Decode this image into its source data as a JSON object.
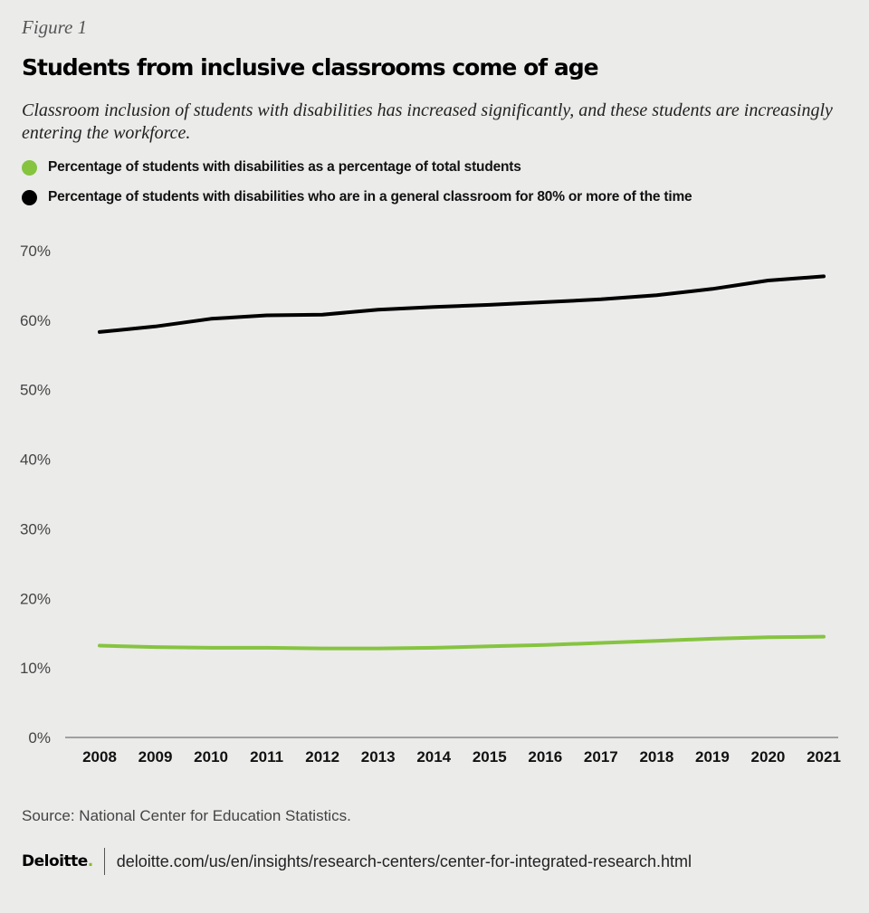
{
  "figure_label": "Figure 1",
  "title": "Students from inclusive classrooms come of age",
  "subtitle": "Classroom inclusion of students with disabilities has increased significantly, and these students are increasingly entering the workforce.",
  "colors": {
    "background": "#ebebea",
    "green": "#86c440",
    "black": "#000000"
  },
  "chart_data": {
    "type": "line",
    "title": "Students from inclusive classrooms come of age",
    "xlabel": "",
    "ylabel": "",
    "ylim": [
      0,
      70
    ],
    "yticks": [
      "0%",
      "10%",
      "20%",
      "30%",
      "40%",
      "50%",
      "60%",
      "70%"
    ],
    "categories": [
      "2008",
      "2009",
      "2010",
      "2011",
      "2012",
      "2013",
      "2014",
      "2015",
      "2016",
      "2017",
      "2018",
      "2019",
      "2020",
      "2021"
    ],
    "grid": false,
    "legend_position": "top-left",
    "series": [
      {
        "name": "Percentage of students with disabilities as a percentage of total students",
        "color": "#86c440",
        "values": [
          13.2,
          13.0,
          12.9,
          12.9,
          12.8,
          12.8,
          12.9,
          13.1,
          13.3,
          13.6,
          13.9,
          14.2,
          14.4,
          14.5
        ]
      },
      {
        "name": "Percentage of students with disabilities who are in a general classroom for 80% or more of the time",
        "color": "#000000",
        "values": [
          58.3,
          59.1,
          60.2,
          60.7,
          60.8,
          61.5,
          61.9,
          62.2,
          62.6,
          63.0,
          63.6,
          64.5,
          65.7,
          66.3
        ]
      }
    ]
  },
  "source": "Source: National Center for Education Statistics.",
  "footer": {
    "brand": "Deloitte",
    "brand_dot": ".",
    "url": "deloitte.com/us/en/insights/research-centers/center-for-integrated-research.html"
  }
}
